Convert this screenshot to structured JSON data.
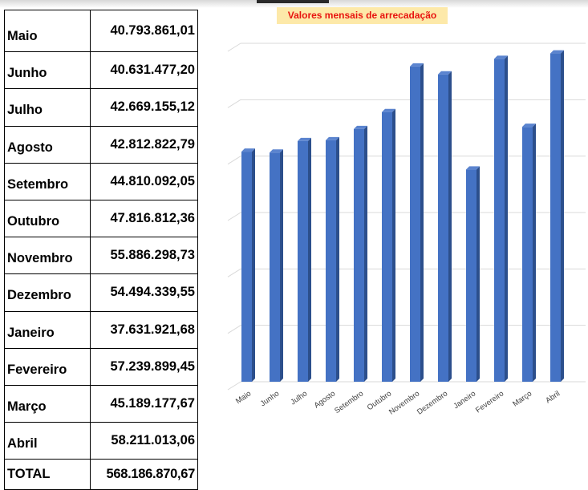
{
  "table": {
    "rows": [
      {
        "month": "Maio",
        "value": "40.793.861,01"
      },
      {
        "month": "Junho",
        "value": "40.631.477,20"
      },
      {
        "month": "Julho",
        "value": "42.669.155,12"
      },
      {
        "month": "Agosto",
        "value": "42.812.822,79"
      },
      {
        "month": "Setembro",
        "value": "44.810.092,05"
      },
      {
        "month": "Outubro",
        "value": "47.816.812,36"
      },
      {
        "month": "Novembro",
        "value": "55.886.298,73"
      },
      {
        "month": "Dezembro",
        "value": "54.494.339,55"
      },
      {
        "month": "Janeiro",
        "value": "37.631.921,68"
      },
      {
        "month": "Fevereiro",
        "value": "57.239.899,45"
      },
      {
        "month": "Março",
        "value": "45.189.177,67"
      },
      {
        "month": "Abril",
        "value": "58.211.013,06"
      }
    ],
    "total_label": "TOTAL",
    "total_value": "568.186.870,67"
  },
  "chart_data": {
    "type": "bar",
    "title": "Valores mensais de arrecadação",
    "categories": [
      "Maio",
      "Junho",
      "Julho",
      "Agosto",
      "Setembro",
      "Outubro",
      "Novembro",
      "Dezembro",
      "Janeiro",
      "Fevereiro",
      "Março",
      "Abril"
    ],
    "values": [
      40793861.01,
      40631477.2,
      42669155.12,
      42812822.79,
      44810092.05,
      47816812.36,
      55886298.73,
      54494339.55,
      37631921.68,
      57239899.45,
      45189177.67,
      58211013.06
    ],
    "ylim": [
      0,
      60000000
    ],
    "grid": true,
    "xlabel": "",
    "ylabel": "",
    "bar_color": "#4472c4"
  }
}
